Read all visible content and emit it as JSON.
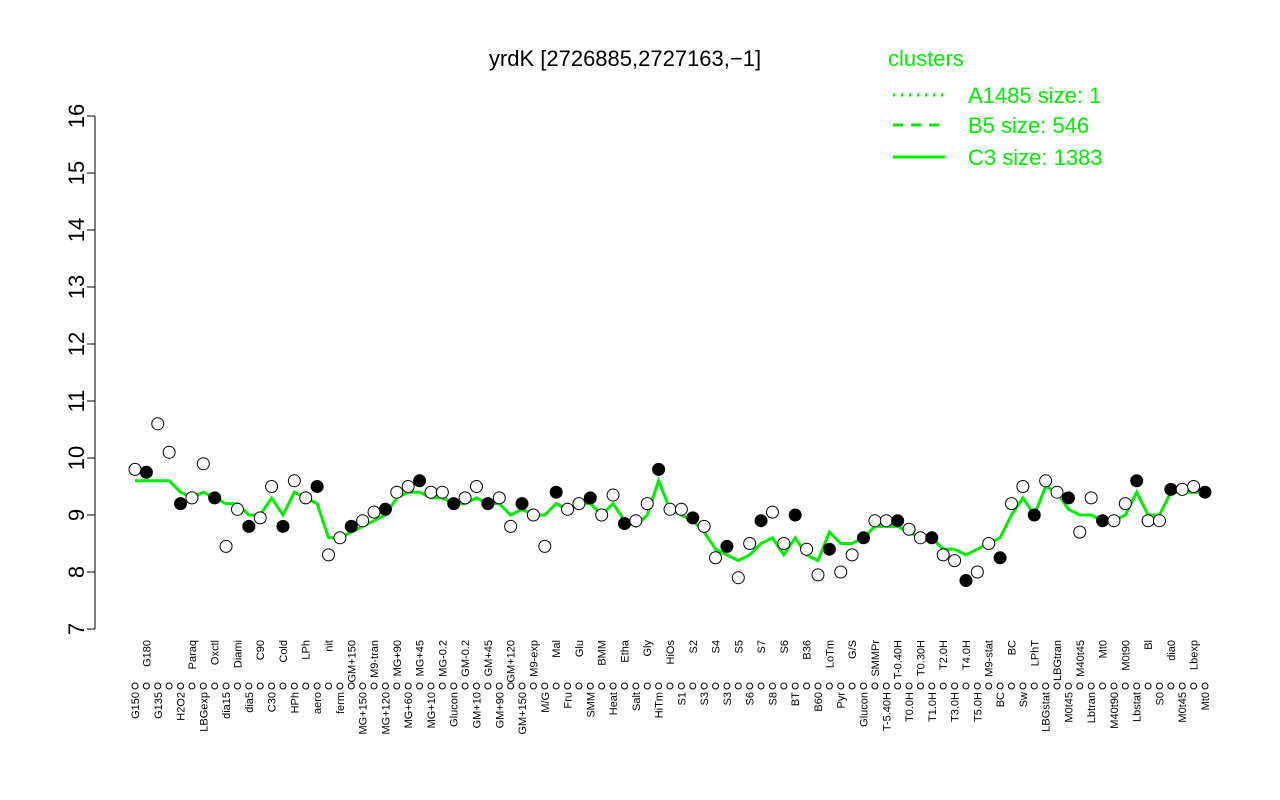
{
  "chart_data": {
    "type": "scatter-line",
    "title": "yrdK [2726885,2727163,−1]",
    "legend_title": "clusters",
    "legend_position": "top-right",
    "legend": [
      {
        "name": "A1485 size: 1",
        "style": "dotted",
        "color": "#00ee00"
      },
      {
        "name": "B5 size: 546",
        "style": "dashed",
        "color": "#00ee00"
      },
      {
        "name": "C3 size: 1383",
        "style": "solid",
        "color": "#00ee00"
      }
    ],
    "ylim": [
      7,
      16
    ],
    "yticks": [
      7,
      8,
      9,
      10,
      11,
      12,
      13,
      14,
      15,
      16
    ],
    "categories": [
      "G150",
      "G180",
      "G135",
      null,
      "H2O2",
      "Paraq",
      "LBGexp",
      "Oxctl",
      "dia15",
      "Diami",
      "dia5",
      "C90",
      "C30",
      "Cold",
      "HPh",
      "LPh",
      "aero",
      "nit",
      "ferm",
      "GM+150",
      "MG+150",
      "M9-tran",
      "MG+120",
      "MG+90",
      "MG+60",
      "MG+45",
      "MG+10",
      "MG-0.2",
      "Glucon",
      "GM-0.2",
      "GM+10",
      "GM+45",
      "GM+90",
      "GM+120",
      "GM+150",
      "M9-exp",
      "M/G",
      "Mal",
      "Fru",
      "Glu",
      "SMM",
      "BMM",
      "Heat",
      "Etha",
      "Salt",
      "Gly",
      "HiTm",
      "HiOs",
      "S1",
      "S2",
      "S3",
      "S4",
      "S3",
      "S5",
      "S6",
      "S7",
      "S8",
      "S6",
      "BT",
      "B36",
      "B60",
      "LoTm",
      "Pyr",
      "G/S",
      "Glucon",
      "SMMPr",
      "T-5.40H",
      "T-0.40H",
      "T0.0H",
      "T0.30H",
      "T1.0H",
      "T2.0H",
      "T3.0H",
      "T4.0H",
      "T5.0H",
      "M9-stat",
      "BC",
      "BC",
      "Sw",
      "LPhT",
      "LBGstat",
      "LBGtran",
      "M0t45",
      "M40t45",
      "Lbtran",
      "Mt0",
      "M40t90",
      "M0t90",
      "Lbstat",
      "Bl",
      "S0",
      "dia0",
      "M0t45",
      "Lbexp",
      "Mt0"
    ],
    "values": [
      9.8,
      9.75,
      10.6,
      10.1,
      9.2,
      9.3,
      9.9,
      9.3,
      8.45,
      9.1,
      8.8,
      8.95,
      9.5,
      8.8,
      9.6,
      9.3,
      9.5,
      8.3,
      8.6,
      8.8,
      8.9,
      9.05,
      9.1,
      9.4,
      9.5,
      9.6,
      9.4,
      9.4,
      9.2,
      9.3,
      9.5,
      9.2,
      9.3,
      8.8,
      9.2,
      9.0,
      8.45,
      9.4,
      9.1,
      9.2,
      9.3,
      9.0,
      9.35,
      8.85,
      8.9,
      9.2,
      9.8,
      9.1,
      9.1,
      8.95,
      8.8,
      8.25,
      8.45,
      7.9,
      8.5,
      8.9,
      9.05,
      8.5,
      9.0,
      8.4,
      7.95,
      8.4,
      8.0,
      8.3,
      8.6,
      8.9,
      8.9,
      8.9,
      8.75,
      8.6,
      8.6,
      8.3,
      8.2,
      7.85,
      8.0,
      8.5,
      8.25,
      9.2,
      9.5,
      9.0,
      9.6,
      9.4,
      9.3,
      8.7,
      9.3,
      8.9,
      8.9,
      9.2,
      9.6,
      8.9,
      8.9,
      9.45,
      9.45,
      9.5,
      9.4
    ],
    "series": [
      {
        "name": "C3 size: 1383",
        "color": "#00ee00",
        "values": [
          9.6,
          9.6,
          9.6,
          9.6,
          9.4,
          9.3,
          9.4,
          9.3,
          9.2,
          9.2,
          9.0,
          9.0,
          9.3,
          9.0,
          9.4,
          9.3,
          9.2,
          8.6,
          8.6,
          8.7,
          8.8,
          8.9,
          9.0,
          9.3,
          9.4,
          9.4,
          9.3,
          9.3,
          9.2,
          9.2,
          9.3,
          9.2,
          9.2,
          9.0,
          9.1,
          9.0,
          9.0,
          9.2,
          9.1,
          9.2,
          9.2,
          9.0,
          9.2,
          8.9,
          8.8,
          9.0,
          9.6,
          9.1,
          9.0,
          8.9,
          8.7,
          8.4,
          8.3,
          8.2,
          8.3,
          8.5,
          8.6,
          8.3,
          8.6,
          8.3,
          8.2,
          8.7,
          8.5,
          8.5,
          8.6,
          8.8,
          8.8,
          8.8,
          8.7,
          8.6,
          8.6,
          8.4,
          8.4,
          8.3,
          8.4,
          8.5,
          8.6,
          9.0,
          9.3,
          9.0,
          9.5,
          9.4,
          9.1,
          9.0,
          9.0,
          8.9,
          8.9,
          9.0,
          9.4,
          9.0,
          9.0,
          9.4,
          9.4,
          9.4,
          9.4
        ]
      }
    ]
  }
}
